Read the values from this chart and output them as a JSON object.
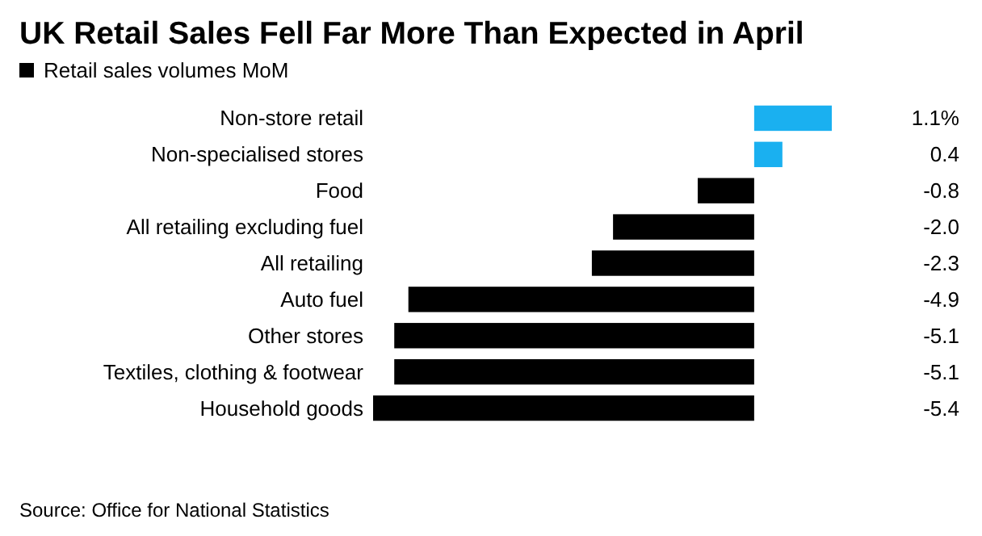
{
  "chart_data": {
    "type": "bar",
    "orientation": "horizontal",
    "title": "UK Retail Sales Fell Far More Than Expected in April",
    "categories": [
      "Non-store retail",
      "Non-specialised stores",
      "Food",
      "All retailing excluding fuel",
      "All retailing",
      "Auto fuel",
      "Other stores",
      "Textiles, clothing & footwear",
      "Household goods"
    ],
    "series": [
      {
        "name": "Retail sales volumes MoM",
        "color": "#000000",
        "colors": [
          "#1ab0f0",
          "#1ab0f0",
          "#000000",
          "#000000",
          "#000000",
          "#000000",
          "#000000",
          "#000000",
          "#000000"
        ],
        "values": [
          1.1,
          0.4,
          -0.8,
          -2.0,
          -2.3,
          -4.9,
          -5.1,
          -5.1,
          -5.4
        ],
        "value_labels": [
          "1.1%",
          "0.4",
          "-0.8",
          "-2.0",
          "-2.3",
          "-4.9",
          "-5.1",
          "-5.1",
          "-5.4"
        ]
      }
    ],
    "xlim": [
      -5.4,
      1.1
    ],
    "legend": "top left",
    "annotations": [
      "Source: Office for National Statistics"
    ]
  }
}
